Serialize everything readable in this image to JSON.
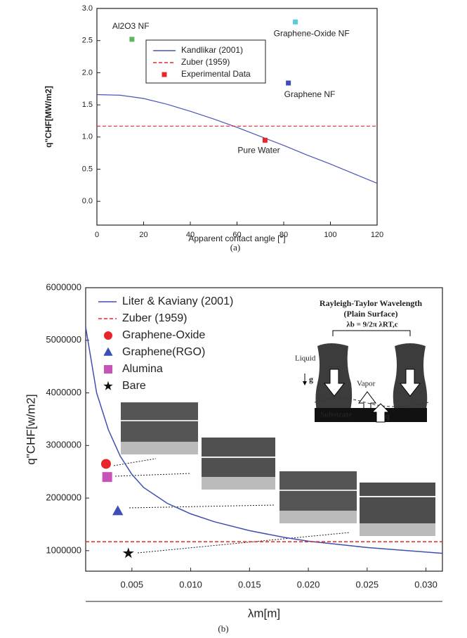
{
  "chart_data": [
    {
      "type": "line",
      "x_label": "Apparent contact angle [°]",
      "y_label": "q\"CHF[MW/m2]",
      "caption": "(a)",
      "xlim": [
        0,
        120
      ],
      "xticks": [
        0,
        20,
        40,
        60,
        80,
        100,
        120
      ],
      "ylim": [
        -0.37,
        3.0
      ],
      "yticks": [
        {
          "value": 0,
          "label": "0.0"
        },
        0.5,
        {
          "value": 1,
          "label": "1.0"
        },
        1.5,
        {
          "value": 2,
          "label": "2.0"
        },
        2.5,
        {
          "value": 3,
          "label": "3.0"
        }
      ],
      "legend": "upper center",
      "series": [
        {
          "name": "Kandlikar (2001)",
          "color": "#4a55b8",
          "style": "solid",
          "x": [
            0,
            10,
            20,
            30,
            40,
            50,
            60,
            70,
            80,
            90,
            100,
            110,
            120
          ],
          "values": [
            1.66,
            1.65,
            1.6,
            1.51,
            1.4,
            1.28,
            1.15,
            1.01,
            0.87,
            0.72,
            0.58,
            0.43,
            0.28
          ]
        },
        {
          "name": "Zuber (1959)",
          "color": "#e8262a",
          "style": "dashed",
          "x": [
            0,
            120
          ],
          "values": [
            1.17,
            1.17
          ]
        },
        {
          "name": "Experimental Data",
          "color": "#e8262a",
          "style": "points",
          "marker": "square",
          "x": [
            15,
            85,
            82,
            72
          ],
          "values": [
            2.52,
            2.79,
            1.84,
            0.95
          ],
          "point_colors": [
            "#5cb85c",
            "#5bc8dd",
            "#3d4fb5",
            "#e8262a"
          ],
          "point_labels": [
            "Al2O3 NF",
            "Graphene-Oxide NF",
            "Graphene NF",
            "Pure Water"
          ]
        }
      ]
    },
    {
      "type": "line",
      "x_label": "λm[m]",
      "y_label": "q\"CHF[w/m2]",
      "caption": "(b)",
      "xlim": [
        0.00107,
        0.0314
      ],
      "xticks": [
        0.005,
        {
          "value": 0.01,
          "label": "0.010"
        },
        0.015,
        {
          "value": 0.02,
          "label": "0.020"
        },
        0.025,
        {
          "value": 0.03,
          "label": "0.030"
        }
      ],
      "ylim": [
        610000,
        6000000
      ],
      "yticks": [
        1000000,
        2000000,
        3000000,
        4000000,
        5000000,
        6000000
      ],
      "legend": "upper left",
      "series": [
        {
          "name": "Liter & Kaviany (2001)",
          "color": "#3d4fb5",
          "style": "solid",
          "x": [
            0.00107,
            0.002,
            0.003,
            0.004,
            0.005,
            0.006,
            0.008,
            0.01,
            0.012,
            0.015,
            0.018,
            0.02,
            0.025,
            0.0314
          ],
          "values": [
            5250000,
            4000000,
            3300000,
            2800000,
            2450000,
            2200000,
            1900000,
            1700000,
            1550000,
            1380000,
            1250000,
            1180000,
            1060000,
            950000
          ]
        },
        {
          "name": "Zuber (1959)",
          "color": "#e8262a",
          "style": "dashed",
          "x": [
            0.00107,
            0.0314
          ],
          "values": [
            1170000,
            1170000
          ]
        },
        {
          "name": "Graphene-Oxide",
          "color": "#e8262a",
          "style": "points",
          "marker": "circle",
          "x": [
            0.0028
          ],
          "values": [
            2650000
          ]
        },
        {
          "name": "Graphene(RGO)",
          "color": "#3d4fb5",
          "style": "points",
          "marker": "triangle",
          "x": [
            0.0038
          ],
          "values": [
            1750000
          ]
        },
        {
          "name": "Alumina",
          "color": "#c653b5",
          "style": "points",
          "marker": "square",
          "x": [
            0.0029
          ],
          "values": [
            2400000
          ]
        },
        {
          "name": "Bare",
          "color": "#111111",
          "style": "points",
          "marker": "star",
          "x": [
            0.0047
          ],
          "values": [
            950000
          ]
        }
      ],
      "inset": {
        "title": [
          "Rayleigh-Taylor Wavelength",
          "(Plain Surface)"
        ],
        "formula": "λb = 9/2π λRT,c",
        "liquid": "Liquid",
        "gravity": "g",
        "vapor": "Vapor",
        "substrate": "Substrate",
        "heat": "q"
      }
    }
  ]
}
